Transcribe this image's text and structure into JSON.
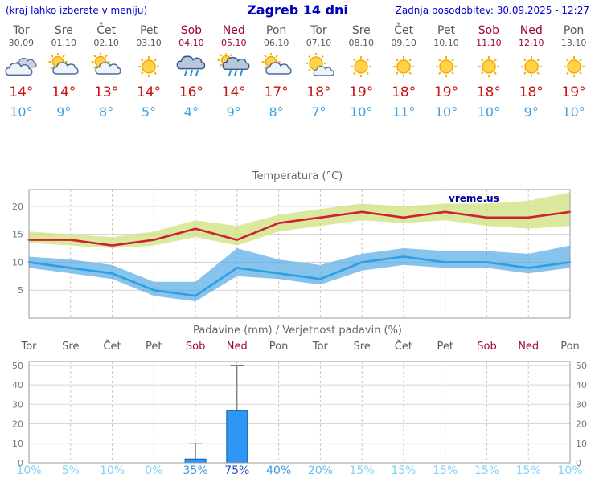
{
  "header": {
    "note": "(kraj lahko izberete v meniju)",
    "title": "Zagreb 14 dni",
    "updated": "Zadnja posodobitev: 30.09.2025 - 12:27"
  },
  "colors": {
    "header_blue": "#0000cc",
    "weekday_text": "#5a5a5a",
    "weekend_text": "#a00040",
    "tmax_text": "#cc1111",
    "tmin_text": "#3fa0dc",
    "bar_fill": "#2f96f3",
    "watermark_blue": "#000099"
  },
  "days": [
    {
      "name": "Tor",
      "date": "30.09",
      "weekend": false,
      "icon": "cloudy",
      "tmax": "14°",
      "tmin": "10°"
    },
    {
      "name": "Sre",
      "date": "01.10",
      "weekend": false,
      "icon": "partly_cloudy",
      "tmax": "14°",
      "tmin": "9°"
    },
    {
      "name": "Čet",
      "date": "02.10",
      "weekend": false,
      "icon": "partly_cloudy",
      "tmax": "13°",
      "tmin": "8°"
    },
    {
      "name": "Pet",
      "date": "03.10",
      "weekend": false,
      "icon": "sunny",
      "tmax": "14°",
      "tmin": "5°"
    },
    {
      "name": "Sob",
      "date": "04.10",
      "weekend": true,
      "icon": "rain",
      "tmax": "16°",
      "tmin": "4°"
    },
    {
      "name": "Ned",
      "date": "05.10",
      "weekend": true,
      "icon": "rain_sun",
      "tmax": "14°",
      "tmin": "9°"
    },
    {
      "name": "Pon",
      "date": "06.10",
      "weekend": false,
      "icon": "partly_cloudy",
      "tmax": "17°",
      "tmin": "8°"
    },
    {
      "name": "Tor",
      "date": "07.10",
      "weekend": false,
      "icon": "mostly_sunny",
      "tmax": "18°",
      "tmin": "7°"
    },
    {
      "name": "Sre",
      "date": "08.10",
      "weekend": false,
      "icon": "sunny",
      "tmax": "19°",
      "tmin": "10°"
    },
    {
      "name": "Čet",
      "date": "09.10",
      "weekend": false,
      "icon": "sunny",
      "tmax": "18°",
      "tmin": "11°"
    },
    {
      "name": "Pet",
      "date": "10.10",
      "weekend": false,
      "icon": "sunny",
      "tmax": "19°",
      "tmin": "10°"
    },
    {
      "name": "Sob",
      "date": "11.10",
      "weekend": true,
      "icon": "sunny",
      "tmax": "18°",
      "tmin": "10°"
    },
    {
      "name": "Ned",
      "date": "12.10",
      "weekend": true,
      "icon": "sunny",
      "tmax": "18°",
      "tmin": "9°"
    },
    {
      "name": "Pon",
      "date": "13.10",
      "weekend": false,
      "icon": "sunny",
      "tmax": "19°",
      "tmin": "10°"
    }
  ],
  "chart_data": [
    {
      "type": "line",
      "title": "Temperatura (°C)",
      "watermark": "vreme.us",
      "x_days": [
        "Tor",
        "Sre",
        "Čet",
        "Pet",
        "Sob",
        "Ned",
        "Pon",
        "Tor",
        "Sre",
        "Čet",
        "Pet",
        "Sob",
        "Ned",
        "Pon"
      ],
      "ylim": [
        0,
        23
      ],
      "yticks": [
        5,
        10,
        15,
        20
      ],
      "grid": true,
      "series": [
        {
          "name": "temperatura-max",
          "color": "#cc2233",
          "values": [
            14,
            14,
            13,
            14,
            16,
            14,
            17,
            18,
            19,
            18,
            19,
            18,
            18,
            19
          ]
        },
        {
          "name": "temperatura-min",
          "color": "#2e9fe0",
          "values": [
            10,
            9,
            8,
            5,
            4,
            9,
            8,
            7,
            10,
            11,
            10,
            10,
            9,
            10
          ]
        }
      ],
      "bands": [
        {
          "name": "max-razpon",
          "color": "#cde178",
          "upper": [
            15.5,
            15,
            14.5,
            15.5,
            17.5,
            16.5,
            18.5,
            19.5,
            20.5,
            20,
            20.5,
            20.5,
            21,
            22.5
          ],
          "lower": [
            13.5,
            13,
            12.5,
            13,
            14.5,
            13,
            15.5,
            16.5,
            17.5,
            17,
            17.5,
            16.5,
            16,
            16.5
          ]
        },
        {
          "name": "min-razpon",
          "color": "#58ace6",
          "upper": [
            11,
            10.5,
            9.5,
            6.5,
            6.5,
            12.5,
            10.5,
            9.5,
            11.5,
            12.5,
            12,
            12,
            11.5,
            13
          ],
          "lower": [
            9,
            8,
            7,
            4,
            3,
            7.5,
            7,
            6,
            8.5,
            9.5,
            9,
            9,
            8,
            9
          ]
        }
      ]
    },
    {
      "type": "bar",
      "title": "Padavine (mm) / Verjetnost padavin (%)",
      "x_days": [
        "Tor",
        "Sre",
        "Čet",
        "Pet",
        "Sob",
        "Ned",
        "Pon",
        "Tor",
        "Sre",
        "Čet",
        "Pet",
        "Sob",
        "Ned",
        "Pon"
      ],
      "ylim": [
        0,
        52
      ],
      "yticks": [
        0,
        10,
        20,
        30,
        40,
        50
      ],
      "values": [
        0,
        0,
        0,
        0,
        2,
        27,
        0,
        0,
        0,
        0,
        0,
        0,
        0,
        0
      ],
      "whiskers": [
        0,
        0,
        0,
        0,
        10,
        50,
        0,
        0,
        0,
        0,
        0,
        0,
        0,
        0
      ],
      "probabilities": [
        10,
        5,
        10,
        0,
        35,
        75,
        40,
        20,
        15,
        15,
        15,
        15,
        15,
        10
      ],
      "prob_labels": [
        "10%",
        "5%",
        "10%",
        "0%",
        "35%",
        "75%",
        "40%",
        "20%",
        "15%",
        "15%",
        "15%",
        "15%",
        "15%",
        "10%"
      ],
      "prob_colors": [
        "#7ed3f4",
        "#7ed3f4",
        "#7ed3f4",
        "#7ed3f4",
        "#3f97dd",
        "#1d4fc0",
        "#3f97dd",
        "#63bfee",
        "#7ed3f4",
        "#7ed3f4",
        "#7ed3f4",
        "#7ed3f4",
        "#7ed3f4",
        "#7ed3f4"
      ]
    }
  ]
}
